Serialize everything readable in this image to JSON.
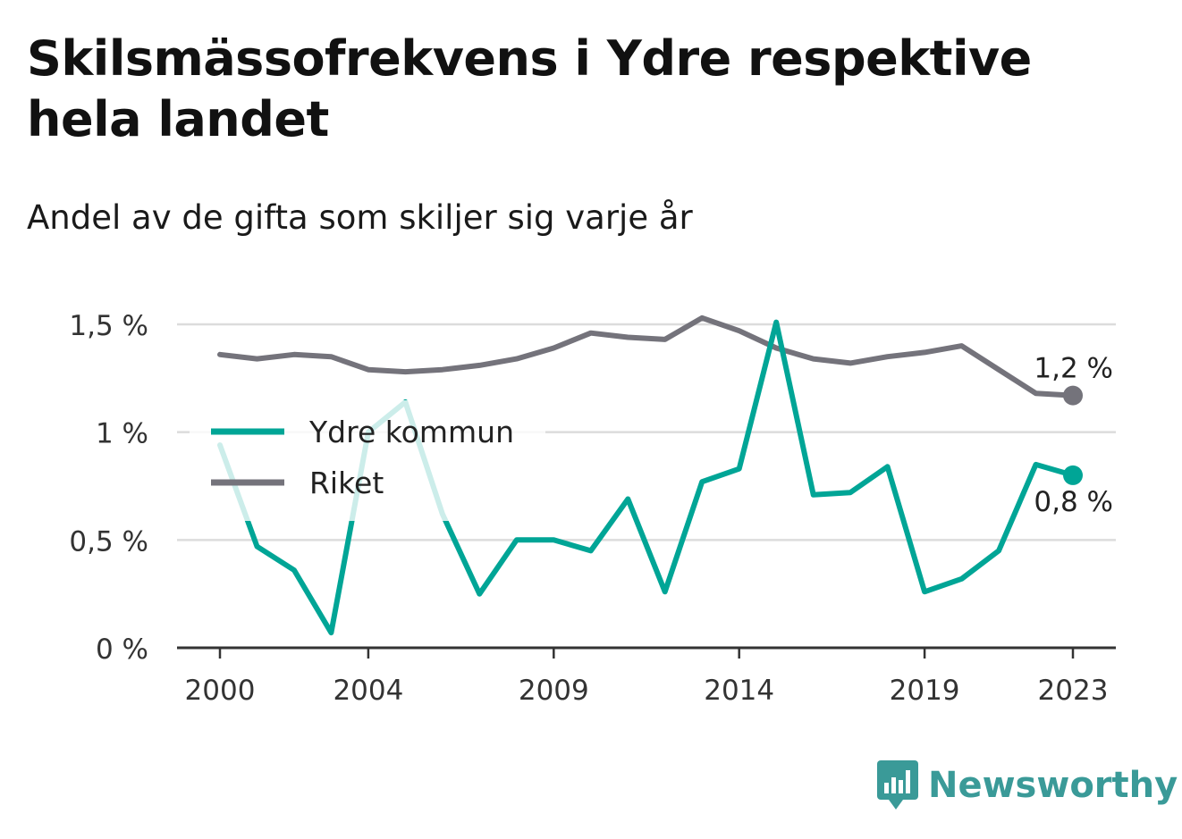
{
  "title": "Skilsmässofrekvens i Ydre respektive hela landet",
  "subtitle": "Andel av de gifta som skiljer sig varje år",
  "brand": {
    "name": "Newsworthy",
    "icon": "newsworthy-logo-icon",
    "color": "#3a9a98"
  },
  "chart_data": {
    "type": "line",
    "x": [
      2000,
      2001,
      2002,
      2003,
      2004,
      2005,
      2006,
      2007,
      2008,
      2009,
      2010,
      2011,
      2012,
      2013,
      2014,
      2015,
      2016,
      2017,
      2018,
      2019,
      2020,
      2021,
      2022,
      2023
    ],
    "x_ticks": [
      2000,
      2004,
      2009,
      2014,
      2019,
      2023
    ],
    "y_ticks": [
      0,
      0.5,
      1,
      1.5
    ],
    "y_tick_labels": [
      "0 %",
      "0,5 %",
      "1 %",
      "1,5 %"
    ],
    "ylim": [
      0,
      1.5
    ],
    "grid": true,
    "legend_position": "left",
    "series": [
      {
        "name": "Ydre kommun",
        "color": "#00a596",
        "values": [
          0.94,
          0.47,
          0.36,
          0.07,
          1.0,
          1.14,
          0.62,
          0.25,
          0.5,
          0.5,
          0.45,
          0.69,
          0.26,
          0.77,
          0.83,
          1.51,
          0.71,
          0.72,
          0.84,
          0.26,
          0.32,
          0.45,
          0.85,
          0.8
        ],
        "end_label": "0,8 %"
      },
      {
        "name": "Riket",
        "color": "#74737b",
        "values": [
          1.36,
          1.34,
          1.36,
          1.35,
          1.29,
          1.28,
          1.29,
          1.31,
          1.34,
          1.39,
          1.46,
          1.44,
          1.43,
          1.53,
          1.47,
          1.39,
          1.34,
          1.32,
          1.35,
          1.37,
          1.4,
          1.29,
          1.18,
          1.17
        ],
        "end_label": "1,2 %"
      }
    ]
  }
}
